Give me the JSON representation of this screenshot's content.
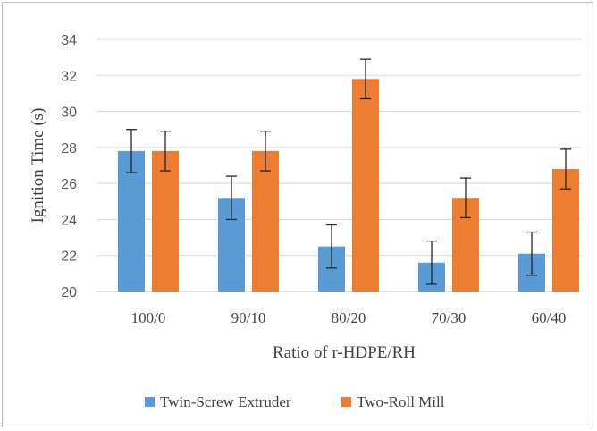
{
  "chart_data": {
    "type": "bar",
    "title": "",
    "xlabel": "Ratio of r-HDPE/RH",
    "ylabel": "Ignition Time (s)",
    "ylim": [
      20,
      34
    ],
    "yticks": [
      20,
      22,
      24,
      26,
      28,
      30,
      32,
      34
    ],
    "categories": [
      "100/0",
      "90/10",
      "80/20",
      "70/30",
      "60/40"
    ],
    "series": [
      {
        "name": "Twin-Screw Extruder",
        "color": "#5b9bd5",
        "values": [
          27.8,
          25.2,
          22.5,
          21.6,
          22.1
        ],
        "error": [
          1.2,
          1.2,
          1.2,
          1.2,
          1.2
        ]
      },
      {
        "name": "Two-Roll Mill",
        "color": "#ed7d31",
        "values": [
          27.8,
          27.8,
          31.8,
          25.2,
          26.8
        ],
        "error": [
          1.1,
          1.1,
          1.1,
          1.1,
          1.1
        ]
      }
    ],
    "grid": true,
    "legend_position": "bottom"
  }
}
